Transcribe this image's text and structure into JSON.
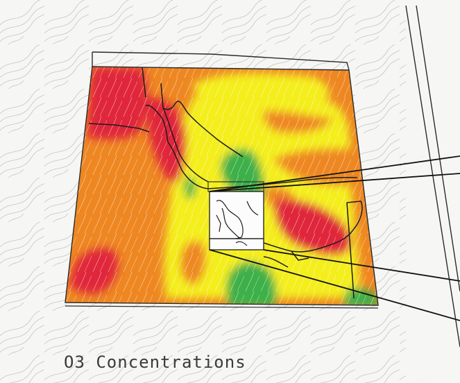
{
  "caption": "O3 Concentrations",
  "colors": {
    "background": "#f6f6f4",
    "streamline": "#b9b9b9",
    "frame": "#2a2a2a",
    "coast": "#1c1c1c",
    "high": "#e0283a",
    "medium_high": "#ee8722",
    "medium": "#f4ee1c",
    "low": "#3db04a"
  }
}
